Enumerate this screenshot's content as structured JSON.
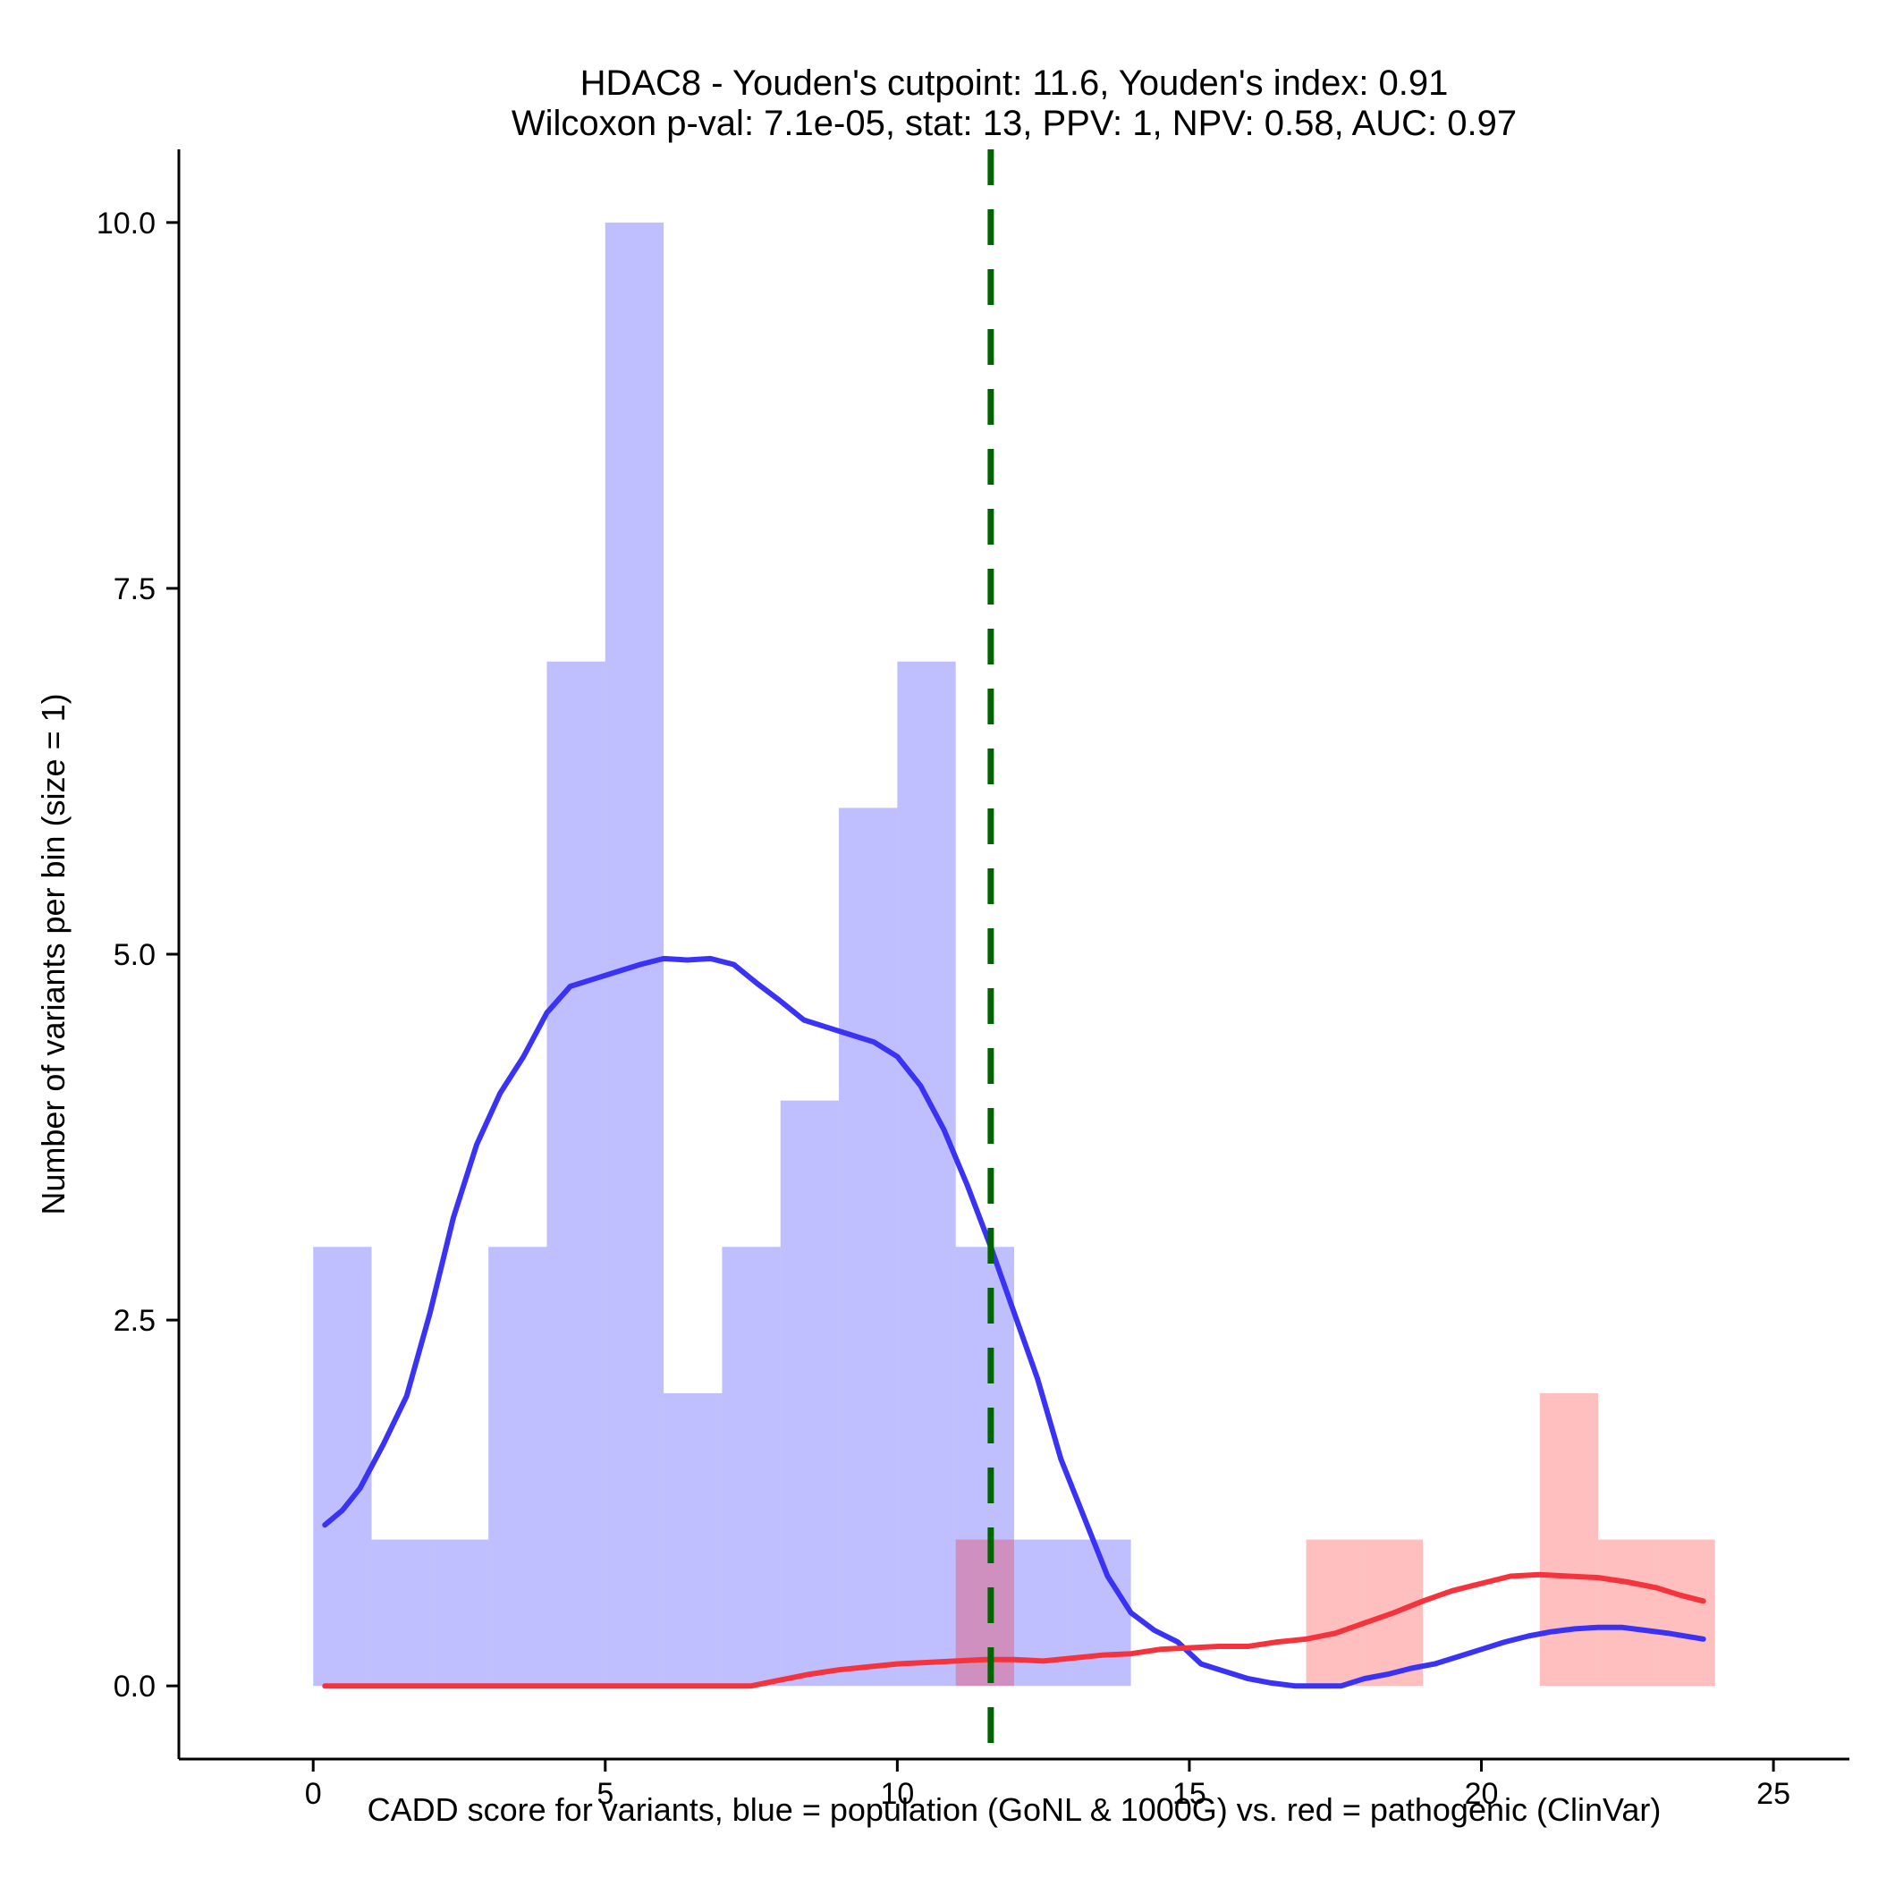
{
  "chart_data": {
    "type": "histogram",
    "title_line1": "HDAC8 - Youden's cutpoint: 11.6, Youden's index: 0.91",
    "title_line2": "Wilcoxon p-val: 7.1e-05, stat: 13, PPV: 1, NPV: 0.58, AUC: 0.97",
    "xlabel": "CADD score for variants, blue = population (GoNL & 1000G) vs. red = pathogenic (ClinVar)",
    "ylabel": "Number of variants per bin (size = 1)",
    "xlim": [
      -2.3,
      26.3
    ],
    "ylim": [
      -0.5,
      10.5
    ],
    "x_ticks": [
      0,
      5,
      10,
      15,
      20,
      25
    ],
    "x_tick_labels": [
      "0",
      "5",
      "10",
      "15",
      "20",
      "25"
    ],
    "y_ticks": [
      0,
      2.5,
      5,
      7.5,
      10
    ],
    "y_tick_labels": [
      "0.0",
      "2.5",
      "5.0",
      "7.5",
      "10.0"
    ],
    "bin_size": 1,
    "cutpoint": 11.6,
    "colors": {
      "population_bar": "#0000ff",
      "pathogenic_bar": "#ff0000",
      "population_line": "#3a33f5",
      "pathogenic_line": "#f5333d",
      "cutpoint_line": "#006400",
      "axis": "#000000"
    },
    "series": [
      {
        "name": "population",
        "bin_starts": [
          0,
          1,
          2,
          3,
          4,
          5,
          6,
          7,
          8,
          9,
          10,
          11,
          12,
          13
        ],
        "counts": [
          3,
          1,
          1,
          3,
          7,
          10,
          2,
          3,
          4,
          6,
          7,
          3,
          1,
          1
        ]
      },
      {
        "name": "pathogenic",
        "bin_starts": [
          11,
          17,
          18,
          21,
          22,
          23
        ],
        "counts": [
          1,
          1,
          1,
          2,
          1,
          1
        ]
      }
    ],
    "density_lines": [
      {
        "name": "population-density",
        "x": [
          0.2,
          0.5,
          0.8,
          1.2,
          1.6,
          2.0,
          2.4,
          2.8,
          3.2,
          3.6,
          4.0,
          4.4,
          4.8,
          5.2,
          5.6,
          6.0,
          6.4,
          6.8,
          7.2,
          7.6,
          8.0,
          8.4,
          8.8,
          9.2,
          9.6,
          10.0,
          10.4,
          10.8,
          11.2,
          11.6,
          12.0,
          12.4,
          12.8,
          13.2,
          13.6,
          14.0,
          14.4,
          14.8,
          15.2,
          15.6,
          16.0,
          16.4,
          16.8,
          17.2,
          17.6,
          18.0,
          18.4,
          18.8,
          19.2,
          19.6,
          20.0,
          20.4,
          20.8,
          21.2,
          21.6,
          22.0,
          22.4,
          22.8,
          23.2,
          23.8
        ],
        "y": [
          1.1,
          1.2,
          1.35,
          1.65,
          1.98,
          2.55,
          3.2,
          3.7,
          4.05,
          4.3,
          4.6,
          4.78,
          4.83,
          4.88,
          4.93,
          4.97,
          4.96,
          4.97,
          4.93,
          4.8,
          4.68,
          4.55,
          4.5,
          4.45,
          4.4,
          4.3,
          4.1,
          3.8,
          3.42,
          3.0,
          2.55,
          2.1,
          1.55,
          1.15,
          0.75,
          0.5,
          0.38,
          0.3,
          0.15,
          0.1,
          0.05,
          0.02,
          0.0,
          0.0,
          0.0,
          0.05,
          0.08,
          0.12,
          0.15,
          0.2,
          0.25,
          0.3,
          0.34,
          0.37,
          0.39,
          0.4,
          0.4,
          0.38,
          0.36,
          0.32
        ]
      },
      {
        "name": "pathogenic-density",
        "x": [
          0.2,
          1.0,
          2.0,
          3.0,
          4.0,
          5.0,
          6.0,
          7.0,
          7.5,
          8.0,
          8.5,
          9.0,
          9.5,
          10.0,
          10.5,
          11.0,
          11.5,
          12.0,
          12.5,
          13.0,
          13.5,
          14.0,
          14.5,
          15.0,
          15.5,
          16.0,
          16.5,
          17.0,
          17.5,
          18.0,
          18.5,
          19.0,
          19.5,
          20.0,
          20.5,
          21.0,
          21.5,
          22.0,
          22.5,
          23.0,
          23.4,
          23.8
        ],
        "y": [
          0.0,
          0.0,
          0.0,
          0.0,
          0.0,
          0.0,
          0.0,
          0.0,
          0.0,
          0.04,
          0.08,
          0.11,
          0.13,
          0.15,
          0.16,
          0.17,
          0.18,
          0.18,
          0.17,
          0.19,
          0.21,
          0.22,
          0.25,
          0.26,
          0.27,
          0.27,
          0.3,
          0.32,
          0.36,
          0.43,
          0.5,
          0.58,
          0.65,
          0.7,
          0.75,
          0.76,
          0.75,
          0.74,
          0.71,
          0.67,
          0.62,
          0.58
        ]
      }
    ]
  }
}
